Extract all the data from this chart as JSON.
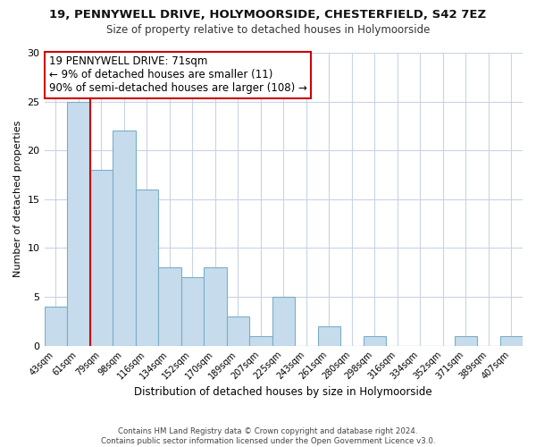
{
  "title": "19, PENNYWELL DRIVE, HOLYMOORSIDE, CHESTERFIELD, S42 7EZ",
  "subtitle": "Size of property relative to detached houses in Holymoorside",
  "xlabel": "Distribution of detached houses by size in Holymoorside",
  "ylabel": "Number of detached properties",
  "categories": [
    "43sqm",
    "61sqm",
    "79sqm",
    "98sqm",
    "116sqm",
    "134sqm",
    "152sqm",
    "170sqm",
    "189sqm",
    "207sqm",
    "225sqm",
    "243sqm",
    "261sqm",
    "280sqm",
    "298sqm",
    "316sqm",
    "334sqm",
    "352sqm",
    "371sqm",
    "389sqm",
    "407sqm"
  ],
  "values": [
    4,
    25,
    18,
    22,
    16,
    8,
    7,
    8,
    3,
    1,
    5,
    0,
    2,
    0,
    1,
    0,
    0,
    0,
    1,
    0,
    1
  ],
  "bar_color": "#c6dcec",
  "bar_edge_color": "#7aaec8",
  "vline_x": 1.5,
  "vline_color": "#cc0000",
  "ylim": [
    0,
    30
  ],
  "yticks": [
    0,
    5,
    10,
    15,
    20,
    25,
    30
  ],
  "annotation_title": "19 PENNYWELL DRIVE: 71sqm",
  "annotation_line1": "← 9% of detached houses are smaller (11)",
  "annotation_line2": "90% of semi-detached houses are larger (108) →",
  "annotation_box_color": "#ffffff",
  "annotation_box_edge": "#cc0000",
  "footer_line1": "Contains HM Land Registry data © Crown copyright and database right 2024.",
  "footer_line2": "Contains public sector information licensed under the Open Government Licence v3.0.",
  "background_color": "#ffffff",
  "grid_color": "#c8d4e4"
}
